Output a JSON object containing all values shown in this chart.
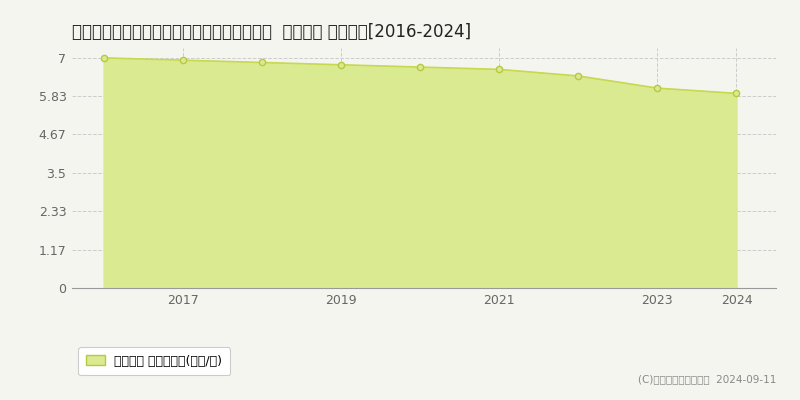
{
  "title": "兵庫県丹波市柏原町北山字中尻２７０番３外  地価公示 地価推移[2016-2024]",
  "years": [
    2016,
    2017,
    2018,
    2019,
    2020,
    2021,
    2022,
    2023,
    2024
  ],
  "values": [
    7.0,
    6.93,
    6.86,
    6.79,
    6.72,
    6.65,
    6.45,
    6.08,
    5.92
  ],
  "yticks": [
    0,
    1.17,
    2.33,
    3.5,
    4.67,
    5.83,
    7
  ],
  "ylim_max": 7.3,
  "xlim_left": 2015.6,
  "xlim_right": 2024.5,
  "line_color": "#c8d850",
  "fill_color": "#daea90",
  "marker_face_color": "#daea90",
  "marker_edge_color": "#b8c840",
  "bg_color": "#f5f5f0",
  "plot_bg_color": "#f5f5f0",
  "grid_color": "#cccccc",
  "tick_color": "#666666",
  "title_color": "#222222",
  "legend_label": "地価公示 平均坪単価(万円/坪)",
  "copyright_text": "(C)土地価格ドットコム  2024-09-11",
  "xticks": [
    2017,
    2019,
    2021,
    2023,
    2024
  ],
  "title_fontsize": 12,
  "tick_fontsize": 9,
  "legend_fontsize": 9
}
